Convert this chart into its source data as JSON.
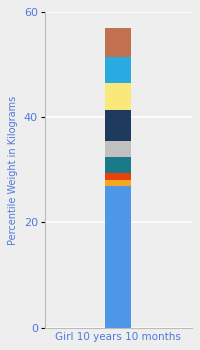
{
  "title": "",
  "xlabel": "Girl 10 years 10 months",
  "ylabel": "Percentile Weight in Kilograms",
  "segments": [
    {
      "value": 27.0,
      "color": "#4d96e8"
    },
    {
      "value": 1.0,
      "color": "#f5a623"
    },
    {
      "value": 1.5,
      "color": "#e8420a"
    },
    {
      "value": 3.0,
      "color": "#1a7a8a"
    },
    {
      "value": 3.0,
      "color": "#c0c0c0"
    },
    {
      "value": 6.0,
      "color": "#1e3a5f"
    },
    {
      "value": 5.0,
      "color": "#f9e87a"
    },
    {
      "value": 5.0,
      "color": "#29abe2"
    },
    {
      "value": 5.5,
      "color": "#c1714f"
    }
  ],
  "ylim": [
    0,
    60
  ],
  "yticks": [
    0,
    20,
    40,
    60
  ],
  "background_color": "#eeeeee",
  "bar_width": 0.28,
  "xlabel_fontsize": 7.5,
  "ylabel_fontsize": 7.0,
  "tick_fontsize": 8,
  "tick_color": "#4d7adb",
  "label_color": "#4d7adb",
  "grid_color": "#ffffff",
  "xlim": [
    -0.8,
    0.8
  ]
}
